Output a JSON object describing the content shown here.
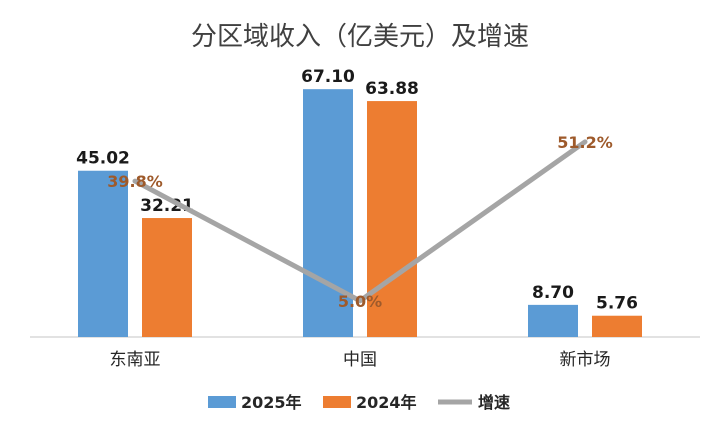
{
  "chart_data": {
    "type": "bar",
    "title": "分区域收入（亿美元）及增速",
    "categories": [
      "东南亚",
      "中国",
      "新市场"
    ],
    "series": [
      {
        "name": "2025年",
        "kind": "bar",
        "color": "#5b9bd5",
        "values": [
          45.02,
          67.1,
          8.7
        ],
        "labels": [
          "45.02",
          "67.10",
          "8.70"
        ]
      },
      {
        "name": "2024年",
        "kind": "bar",
        "color": "#ed7d31",
        "values": [
          32.21,
          63.88,
          5.76
        ],
        "labels": [
          "32.21",
          "63.88",
          "5.76"
        ]
      },
      {
        "name": "增速",
        "kind": "line",
        "color": "#a5a5a5",
        "values": [
          39.8,
          5.0,
          51.2
        ],
        "unit": "%",
        "labels": [
          "39.8%",
          "5.0%",
          "51.2%"
        ],
        "label_color": "#9e5a2b"
      }
    ],
    "xlabel": "",
    "ylabel": "",
    "ylim": [
      0,
      75
    ],
    "grid": false,
    "legend": "bottom"
  }
}
